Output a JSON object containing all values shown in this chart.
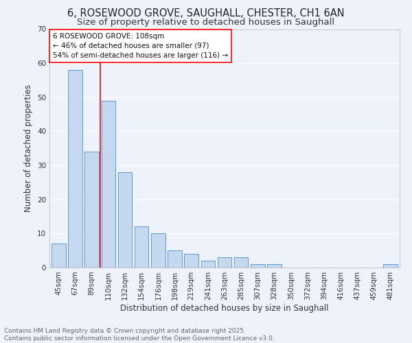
{
  "title": "6, ROSEWOOD GROVE, SAUGHALL, CHESTER, CH1 6AN",
  "subtitle": "Size of property relative to detached houses in Saughall",
  "xlabel": "Distribution of detached houses by size in Saughall",
  "ylabel": "Number of detached properties",
  "categories": [
    "45sqm",
    "67sqm",
    "89sqm",
    "110sqm",
    "132sqm",
    "154sqm",
    "176sqm",
    "198sqm",
    "219sqm",
    "241sqm",
    "263sqm",
    "285sqm",
    "307sqm",
    "328sqm",
    "350sqm",
    "372sqm",
    "394sqm",
    "416sqm",
    "437sqm",
    "459sqm",
    "481sqm"
  ],
  "values": [
    7,
    58,
    34,
    49,
    28,
    12,
    10,
    5,
    4,
    2,
    3,
    3,
    1,
    1,
    0,
    0,
    0,
    0,
    0,
    0,
    1
  ],
  "bar_color": "#c5d8f0",
  "bar_edge_color": "#5b9bd5",
  "background_color": "#eef2fb",
  "grid_color": "#ffffff",
  "ylim": [
    0,
    70
  ],
  "yticks": [
    0,
    10,
    20,
    30,
    40,
    50,
    60,
    70
  ],
  "annotation_box_text": "6 ROSEWOOD GROVE: 108sqm\n← 46% of detached houses are smaller (97)\n54% of semi-detached houses are larger (116) →",
  "footer_line1": "Contains HM Land Registry data © Crown copyright and database right 2025.",
  "footer_line2": "Contains public sector information licensed under the Open Government Licence v3.0.",
  "title_fontsize": 10.5,
  "subtitle_fontsize": 9.5,
  "axis_label_fontsize": 8.5,
  "tick_fontsize": 7.5,
  "annotation_fontsize": 7.5,
  "footer_fontsize": 6.5,
  "red_line_bar_index": 2,
  "bar_width": 0.85
}
